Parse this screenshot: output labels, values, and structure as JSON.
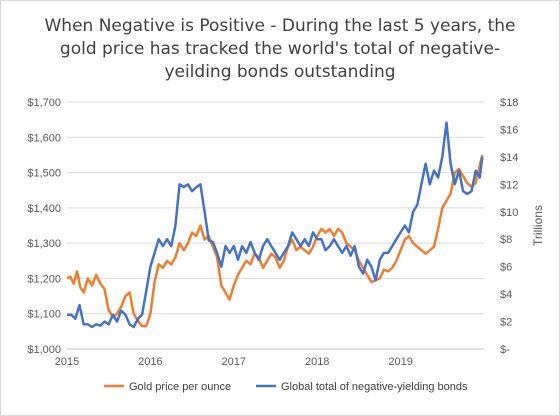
{
  "chart_data": {
    "type": "line",
    "title": "When Negative is Positive - During the last 5 years, the gold price has tracked the world's total of negative-yeilding bonds outstanding",
    "xlabel": "",
    "ylabel_left": "",
    "ylabel_right": "Trillions",
    "x_ticks": [
      "2015",
      "2016",
      "2017",
      "2018",
      "2019"
    ],
    "x_range": [
      2015.0,
      2020.0
    ],
    "y_left": {
      "range": [
        1000,
        1700
      ],
      "ticks": [
        "$1,000",
        "$1,100",
        "$1,200",
        "$1,300",
        "$1,400",
        "$1,500",
        "$1,600",
        "$1,700"
      ]
    },
    "y_right": {
      "range": [
        0,
        18
      ],
      "ticks": [
        "$-",
        "$2",
        "$4",
        "$6",
        "$8",
        "$10",
        "$12",
        "$14",
        "$16",
        "$18"
      ]
    },
    "grid": true,
    "legend_position": "bottom",
    "series": [
      {
        "name": "Gold price per ounce",
        "axis": "left",
        "color": "#ED7D31",
        "x": [
          2015.0,
          2015.04,
          2015.08,
          2015.12,
          2015.16,
          2015.2,
          2015.25,
          2015.3,
          2015.35,
          2015.4,
          2015.45,
          2015.5,
          2015.55,
          2015.6,
          2015.65,
          2015.7,
          2015.75,
          2015.8,
          2015.85,
          2015.9,
          2015.95,
          2016.0,
          2016.05,
          2016.1,
          2016.15,
          2016.2,
          2016.25,
          2016.3,
          2016.35,
          2016.4,
          2016.45,
          2016.5,
          2016.55,
          2016.6,
          2016.65,
          2016.7,
          2016.75,
          2016.8,
          2016.85,
          2016.9,
          2016.95,
          2017.0,
          2017.05,
          2017.1,
          2017.15,
          2017.2,
          2017.25,
          2017.3,
          2017.35,
          2017.4,
          2017.45,
          2017.5,
          2017.55,
          2017.6,
          2017.65,
          2017.7,
          2017.75,
          2017.8,
          2017.85,
          2017.9,
          2017.95,
          2018.0,
          2018.05,
          2018.1,
          2018.15,
          2018.2,
          2018.25,
          2018.3,
          2018.35,
          2018.4,
          2018.45,
          2018.5,
          2018.55,
          2018.6,
          2018.65,
          2018.7,
          2018.75,
          2018.8,
          2018.85,
          2018.9,
          2018.95,
          2019.0,
          2019.05,
          2019.1,
          2019.15,
          2019.2,
          2019.25,
          2019.3,
          2019.35,
          2019.4,
          2019.45,
          2019.5,
          2019.55,
          2019.6,
          2019.65,
          2019.7,
          2019.75,
          2019.8,
          2019.85,
          2019.9,
          2019.95,
          2019.98
        ],
        "values": [
          1200,
          1205,
          1185,
          1220,
          1175,
          1160,
          1200,
          1180,
          1210,
          1185,
          1170,
          1110,
          1090,
          1100,
          1120,
          1150,
          1160,
          1100,
          1080,
          1065,
          1065,
          1100,
          1190,
          1240,
          1230,
          1250,
          1240,
          1260,
          1300,
          1280,
          1300,
          1330,
          1320,
          1350,
          1310,
          1320,
          1290,
          1260,
          1180,
          1160,
          1140,
          1180,
          1210,
          1230,
          1250,
          1240,
          1270,
          1260,
          1230,
          1250,
          1270,
          1260,
          1230,
          1250,
          1290,
          1310,
          1280,
          1290,
          1280,
          1270,
          1290,
          1320,
          1340,
          1330,
          1340,
          1320,
          1340,
          1330,
          1300,
          1290,
          1280,
          1250,
          1230,
          1210,
          1190,
          1195,
          1200,
          1225,
          1220,
          1230,
          1250,
          1280,
          1310,
          1320,
          1300,
          1290,
          1280,
          1270,
          1280,
          1290,
          1340,
          1400,
          1420,
          1440,
          1500,
          1510,
          1490,
          1470,
          1460,
          1470,
          1520,
          1550
        ]
      },
      {
        "name": "Global total of negative-yielding bonds",
        "axis": "right",
        "color": "#4472C4",
        "x": [
          2015.0,
          2015.05,
          2015.1,
          2015.15,
          2015.2,
          2015.25,
          2015.3,
          2015.35,
          2015.4,
          2015.45,
          2015.5,
          2015.55,
          2015.6,
          2015.65,
          2015.7,
          2015.75,
          2015.8,
          2015.85,
          2015.9,
          2015.95,
          2016.0,
          2016.05,
          2016.1,
          2016.15,
          2016.2,
          2016.25,
          2016.3,
          2016.35,
          2016.4,
          2016.45,
          2016.5,
          2016.55,
          2016.6,
          2016.65,
          2016.7,
          2016.75,
          2016.8,
          2016.85,
          2016.9,
          2016.95,
          2017.0,
          2017.05,
          2017.1,
          2017.15,
          2017.2,
          2017.25,
          2017.3,
          2017.35,
          2017.4,
          2017.45,
          2017.5,
          2017.55,
          2017.6,
          2017.65,
          2017.7,
          2017.75,
          2017.8,
          2017.85,
          2017.9,
          2017.95,
          2018.0,
          2018.05,
          2018.1,
          2018.15,
          2018.2,
          2018.25,
          2018.3,
          2018.35,
          2018.4,
          2018.45,
          2018.5,
          2018.55,
          2018.6,
          2018.65,
          2018.7,
          2018.75,
          2018.8,
          2018.85,
          2018.9,
          2018.95,
          2019.0,
          2019.05,
          2019.1,
          2019.15,
          2019.2,
          2019.25,
          2019.3,
          2019.35,
          2019.4,
          2019.45,
          2019.5,
          2019.55,
          2019.6,
          2019.65,
          2019.7,
          2019.75,
          2019.8,
          2019.85,
          2019.9,
          2019.95,
          2019.98
        ],
        "values": [
          2.5,
          2.5,
          2.2,
          3.2,
          1.8,
          1.8,
          1.6,
          1.8,
          1.7,
          2.0,
          1.8,
          2.5,
          2.0,
          2.8,
          2.5,
          1.8,
          1.6,
          2.2,
          2.5,
          4.2,
          6.0,
          7.0,
          8.0,
          7.5,
          8.0,
          7.5,
          9.0,
          12.0,
          11.8,
          12.0,
          11.5,
          11.8,
          12.0,
          10.0,
          7.9,
          7.8,
          7.0,
          6.0,
          7.5,
          7.0,
          7.5,
          6.5,
          7.5,
          7.0,
          7.8,
          7.0,
          6.5,
          7.5,
          8.0,
          7.5,
          7.0,
          6.5,
          7.0,
          7.5,
          8.5,
          8.0,
          7.5,
          8.0,
          7.5,
          8.5,
          8.0,
          8.0,
          7.2,
          7.5,
          8.0,
          7.5,
          7.0,
          7.5,
          6.8,
          7.5,
          6.0,
          5.5,
          6.5,
          6.0,
          5.0,
          6.5,
          7.0,
          7.0,
          7.5,
          8.0,
          8.5,
          9.0,
          8.5,
          10.0,
          10.5,
          12.0,
          13.5,
          12.0,
          13.0,
          12.5,
          14.0,
          16.5,
          13.5,
          12.0,
          13.0,
          11.5,
          11.3,
          11.5,
          13.0,
          12.5,
          14.0
        ]
      }
    ]
  }
}
